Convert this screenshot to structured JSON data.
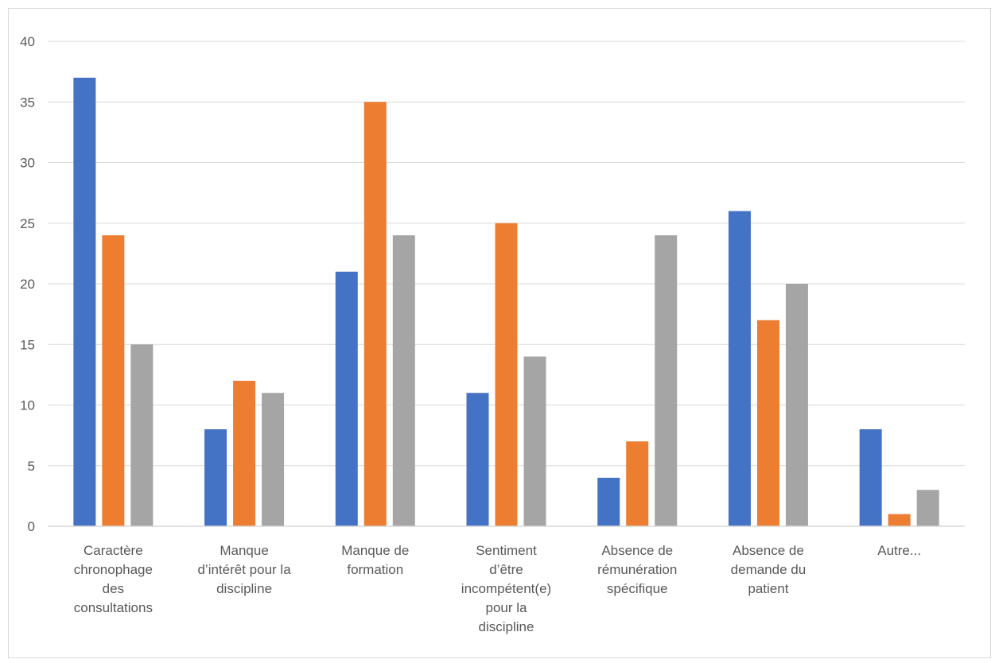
{
  "chart_data": {
    "type": "bar",
    "title": "",
    "xlabel": "",
    "ylabel": "",
    "ylim": [
      0,
      40
    ],
    "yticks": [
      0,
      5,
      10,
      15,
      20,
      25,
      30,
      35,
      40
    ],
    "grid": true,
    "legend": "none",
    "categories": [
      [
        "Caractère",
        "chronophage",
        "des",
        "consultations"
      ],
      [
        "Manque",
        "d’intérêt pour la",
        "discipline"
      ],
      [
        "Manque de",
        "formation"
      ],
      [
        "Sentiment",
        "d’être",
        "incompétent(e)",
        "pour la",
        "discipline"
      ],
      [
        "Absence de",
        "rémunération",
        "spécifique"
      ],
      [
        "Absence de",
        "demande du",
        "patient"
      ],
      [
        "Autre..."
      ]
    ],
    "series": [
      {
        "color": "#4472c4",
        "values": [
          37,
          8,
          21,
          11,
          4,
          26,
          8
        ]
      },
      {
        "color": "#ed7d31",
        "values": [
          24,
          12,
          35,
          25,
          7,
          17,
          1
        ]
      },
      {
        "color": "#a5a5a5",
        "values": [
          15,
          11,
          24,
          14,
          24,
          20,
          3
        ]
      }
    ],
    "gridline_color": "#d9d9d9",
    "axis_color": "#d9d9d9"
  }
}
